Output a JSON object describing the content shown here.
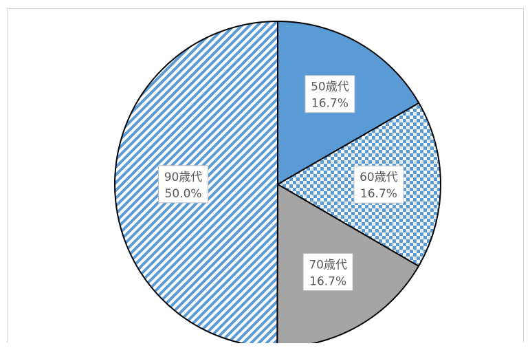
{
  "chart_data": {
    "type": "pie",
    "title": "",
    "categories": [
      "50歳代",
      "60歳代",
      "70歳代",
      "90歳代"
    ],
    "values": [
      16.7,
      16.7,
      16.7,
      50.0
    ],
    "percent_labels": [
      "16.7%",
      "16.7%",
      "16.7%",
      "50.0%"
    ],
    "start_angle_deg": 0,
    "direction": "clockwise",
    "legend": "none",
    "slices": [
      {
        "category": "50歳代",
        "value": 16.7,
        "label": "16.7%",
        "fill": "solid",
        "color": "#5b9bd5"
      },
      {
        "category": "60歳代",
        "value": 16.7,
        "label": "16.7%",
        "fill": "checker-pattern",
        "color": "#5b9bd5"
      },
      {
        "category": "70歳代",
        "value": 16.7,
        "label": "16.7%",
        "fill": "solid",
        "color": "#a5a5a5"
      },
      {
        "category": "90歳代",
        "value": 50.0,
        "label": "50.0%",
        "fill": "diagonal-stripes",
        "color": "#5b9bd5"
      }
    ]
  }
}
